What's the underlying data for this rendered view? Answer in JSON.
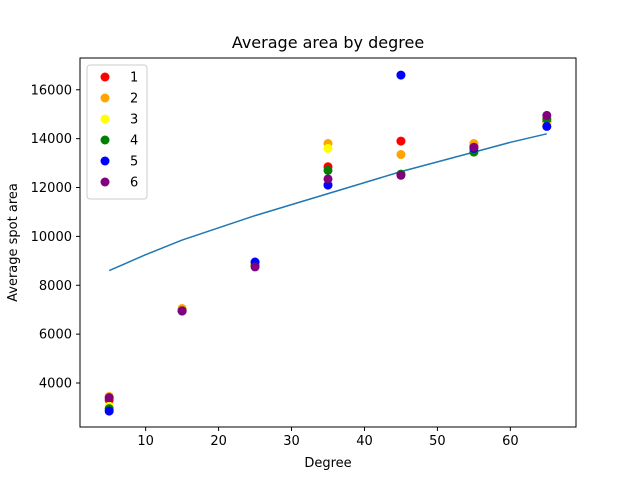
{
  "chart_data": {
    "type": "scatter",
    "title": "Average area by degree",
    "xlabel": "Degree",
    "ylabel": "Average spot area",
    "xlim": [
      1,
      69
    ],
    "ylim": [
      2200,
      17300
    ],
    "xticks": [
      10,
      20,
      30,
      40,
      50,
      60
    ],
    "yticks": [
      4000,
      6000,
      8000,
      10000,
      12000,
      14000,
      16000
    ],
    "grid": false,
    "legend_position": "top-left",
    "series": [
      {
        "name": "1",
        "color": "#ff0000",
        "x": [
          5,
          15,
          25,
          35,
          45,
          55,
          65
        ],
        "y": [
          3300,
          7000,
          8850,
          12850,
          13900,
          13700,
          14700
        ]
      },
      {
        "name": "2",
        "color": "#ffa500",
        "x": [
          5,
          15,
          25,
          35,
          45,
          55,
          65
        ],
        "y": [
          3450,
          7050,
          8900,
          13800,
          13350,
          13800,
          14600
        ]
      },
      {
        "name": "3",
        "color": "#ffff00",
        "x": [
          5,
          15,
          25,
          35,
          45,
          55,
          65
        ],
        "y": [
          3050,
          6950,
          8800,
          13600,
          12500,
          13600,
          14550
        ]
      },
      {
        "name": "4",
        "color": "#008000",
        "x": [
          5,
          15,
          25,
          35,
          45,
          55,
          65
        ],
        "y": [
          2950,
          6950,
          8800,
          12700,
          12550,
          13450,
          14800
        ]
      },
      {
        "name": "5",
        "color": "#0000ff",
        "x": [
          5,
          15,
          25,
          35,
          45,
          55,
          65
        ],
        "y": [
          2850,
          6950,
          8950,
          12100,
          16600,
          13600,
          14500
        ]
      },
      {
        "name": "6",
        "color": "#800080",
        "x": [
          5,
          15,
          25,
          35,
          45,
          55,
          65
        ],
        "y": [
          3400,
          6950,
          8750,
          12350,
          12500,
          13650,
          14950
        ]
      }
    ],
    "trend_line": {
      "color": "#1f77b4",
      "x": [
        5,
        10,
        15,
        20,
        25,
        30,
        35,
        40,
        45,
        50,
        55,
        60,
        65
      ],
      "y": [
        8600,
        9250,
        9850,
        10350,
        10850,
        11300,
        11750,
        12200,
        12650,
        13050,
        13450,
        13850,
        14200
      ]
    }
  }
}
